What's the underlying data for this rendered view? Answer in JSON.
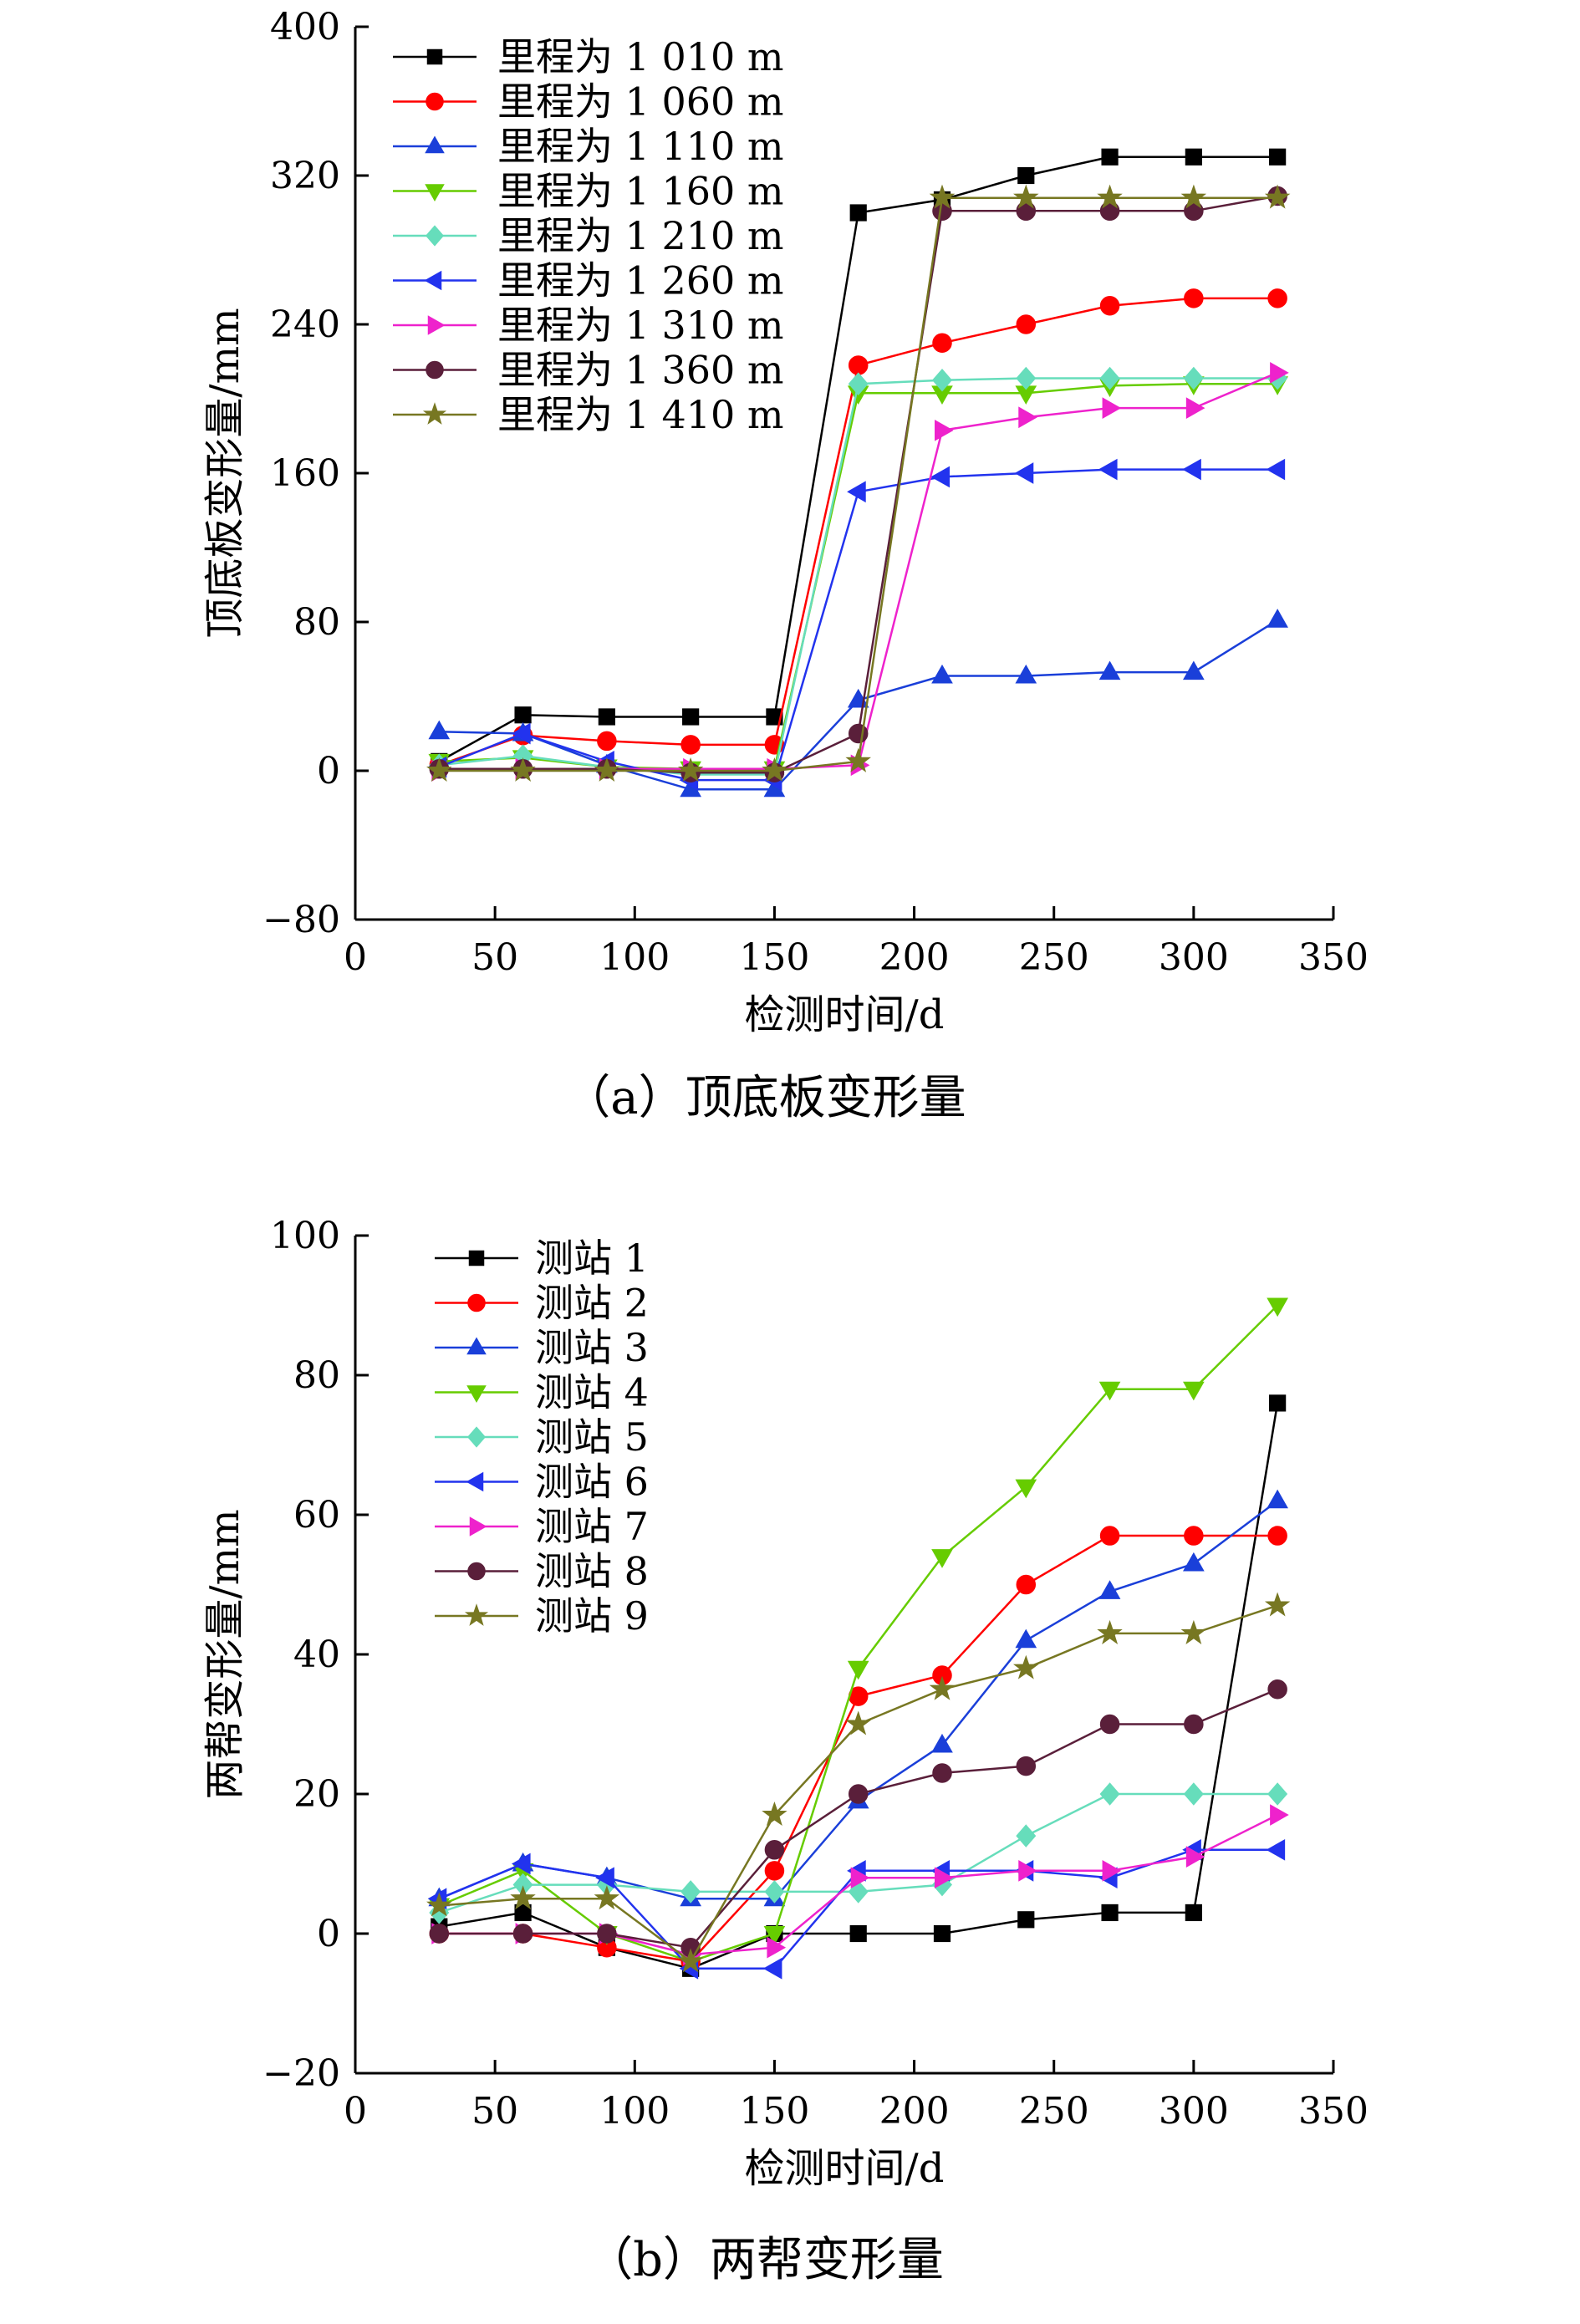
{
  "chart_data": [
    {
      "type": "line",
      "caption": "（a）顶底板变形量",
      "xlabel": "检测时间/d",
      "ylabel": "顶底板变形量/mm",
      "xlim": [
        0,
        350
      ],
      "ylim": [
        -80,
        400
      ],
      "xticks": [
        0,
        50,
        100,
        150,
        200,
        250,
        300,
        350
      ],
      "yticks": [
        -80,
        0,
        80,
        160,
        240,
        320,
        400
      ],
      "grid": false,
      "legend_position": "top-left",
      "x": [
        30,
        60,
        90,
        120,
        150,
        180,
        210,
        240,
        270,
        300,
        330
      ],
      "series": [
        {
          "name": "里程为 1 010 m",
          "color": "#000000",
          "marker": "square",
          "values": [
            5,
            30,
            29,
            29,
            29,
            300,
            307,
            320,
            330,
            330,
            330
          ]
        },
        {
          "name": "里程为 1 060 m",
          "color": "#ff0000",
          "marker": "circle",
          "values": [
            3,
            19,
            16,
            14,
            14,
            218,
            230,
            240,
            250,
            254,
            254
          ]
        },
        {
          "name": "里程为 1 110 m",
          "color": "#1a3fd9",
          "marker": "triangle-up",
          "values": [
            21,
            20,
            3,
            -10,
            -10,
            38,
            51,
            51,
            53,
            53,
            81
          ]
        },
        {
          "name": "里程为 1 160 m",
          "color": "#66cc00",
          "marker": "triangle-down",
          "values": [
            5,
            7,
            2,
            1,
            1,
            203,
            203,
            203,
            207,
            208,
            208
          ]
        },
        {
          "name": "里程为 1 210 m",
          "color": "#66ddbb",
          "marker": "diamond",
          "values": [
            3,
            8,
            2,
            -2,
            -2,
            208,
            210,
            211,
            211,
            211,
            211
          ]
        },
        {
          "name": "里程为 1 260 m",
          "color": "#2233ee",
          "marker": "triangle-left",
          "values": [
            2,
            20,
            5,
            -5,
            -5,
            150,
            158,
            160,
            162,
            162,
            162
          ]
        },
        {
          "name": "里程为 1 310 m",
          "color": "#ee22cc",
          "marker": "triangle-right",
          "values": [
            0,
            1,
            1,
            1,
            1,
            3,
            183,
            190,
            195,
            195,
            214
          ]
        },
        {
          "name": "里程为 1 360 m",
          "color": "#5a1f3a",
          "marker": "circle",
          "values": [
            1,
            1,
            1,
            -1,
            -1,
            20,
            301,
            301,
            301,
            301,
            309
          ]
        },
        {
          "name": "里程为 1 410 m",
          "color": "#777722",
          "marker": "star",
          "values": [
            0,
            0,
            0,
            0,
            0,
            5,
            308,
            308,
            308,
            308,
            308
          ]
        }
      ]
    },
    {
      "type": "line",
      "caption": "（b）两帮变形量",
      "xlabel": "检测时间/d",
      "ylabel": "两帮变形量/mm",
      "xlim": [
        0,
        350
      ],
      "ylim": [
        -20,
        100
      ],
      "xticks": [
        0,
        50,
        100,
        150,
        200,
        250,
        300,
        350
      ],
      "yticks": [
        -20,
        0,
        20,
        40,
        60,
        80,
        100
      ],
      "grid": false,
      "legend_position": "top-left",
      "x": [
        30,
        60,
        90,
        120,
        150,
        180,
        210,
        240,
        270,
        300,
        330
      ],
      "series": [
        {
          "name": "测站 1",
          "color": "#000000",
          "marker": "square",
          "values": [
            1,
            3,
            -2,
            -5,
            0,
            0,
            0,
            2,
            3,
            3,
            76
          ]
        },
        {
          "name": "测站 2",
          "color": "#ff0000",
          "marker": "circle",
          "values": [
            0,
            0,
            -2,
            -4,
            9,
            34,
            37,
            50,
            57,
            57,
            57
          ]
        },
        {
          "name": "测站 3",
          "color": "#1a3fd9",
          "marker": "triangle-up",
          "values": [
            5,
            10,
            8,
            5,
            5,
            19,
            27,
            42,
            49,
            53,
            62
          ]
        },
        {
          "name": "测站 4",
          "color": "#66cc00",
          "marker": "triangle-down",
          "values": [
            4,
            9,
            0,
            -4,
            0,
            38,
            54,
            64,
            78,
            78,
            90
          ]
        },
        {
          "name": "测站 5",
          "color": "#66ddbb",
          "marker": "diamond",
          "values": [
            3,
            7,
            7,
            6,
            6,
            6,
            7,
            14,
            20,
            20,
            20
          ]
        },
        {
          "name": "测站 6",
          "color": "#2233ee",
          "marker": "triangle-left",
          "values": [
            5,
            10,
            8,
            -5,
            -5,
            9,
            9,
            9,
            8,
            12,
            12
          ]
        },
        {
          "name": "测站 7",
          "color": "#ee22cc",
          "marker": "triangle-right",
          "values": [
            0,
            0,
            0,
            -3,
            -2,
            8,
            8,
            9,
            9,
            11,
            17
          ]
        },
        {
          "name": "测站 8",
          "color": "#5a1f3a",
          "marker": "circle",
          "values": [
            0,
            0,
            0,
            -2,
            12,
            20,
            23,
            24,
            30,
            30,
            35
          ]
        },
        {
          "name": "测站 9",
          "color": "#777722",
          "marker": "star",
          "values": [
            4,
            5,
            5,
            -4,
            17,
            30,
            35,
            38,
            43,
            43,
            47
          ]
        }
      ]
    }
  ]
}
